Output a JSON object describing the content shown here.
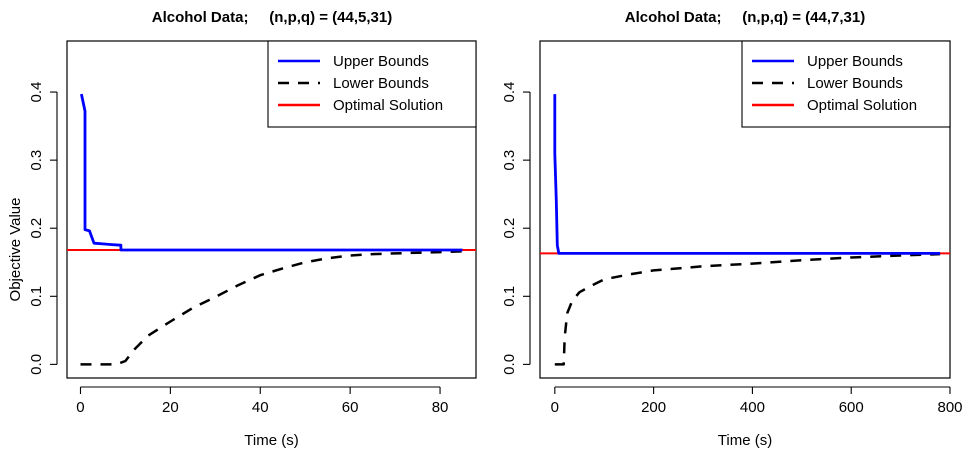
{
  "chart_data": [
    {
      "type": "line",
      "title": "Alcohol Data;     (n,p,q) = (44,5,31)",
      "xlabel": "Time (s)",
      "ylabel": "Objective Value",
      "xlim": [
        -3,
        88
      ],
      "ylim": [
        -0.02,
        0.475
      ],
      "xticks": [
        0,
        20,
        40,
        60,
        80
      ],
      "yticks": [
        0.0,
        0.1,
        0.2,
        0.3,
        0.4
      ],
      "legend_position": "top-right",
      "grid": false,
      "series": [
        {
          "name": "Upper Bounds",
          "color": "#0000ff",
          "style": "solid",
          "points": [
            [
              0.2,
              0.397
            ],
            [
              1.0,
              0.372
            ],
            [
              1.0,
              0.198
            ],
            [
              2.0,
              0.196
            ],
            [
              3.0,
              0.178
            ],
            [
              5.0,
              0.177
            ],
            [
              7.0,
              0.176
            ],
            [
              9.0,
              0.175
            ],
            [
              9.0,
              0.168
            ],
            [
              85,
              0.168
            ]
          ]
        },
        {
          "name": "Lower Bounds",
          "color": "#000000",
          "style": "dashed",
          "points": [
            [
              0,
              0.0
            ],
            [
              8,
              0.0
            ],
            [
              10,
              0.005
            ],
            [
              12,
              0.022
            ],
            [
              15,
              0.042
            ],
            [
              20,
              0.063
            ],
            [
              25,
              0.083
            ],
            [
              30,
              0.099
            ],
            [
              35,
              0.116
            ],
            [
              40,
              0.131
            ],
            [
              45,
              0.141
            ],
            [
              50,
              0.15
            ],
            [
              55,
              0.156
            ],
            [
              60,
              0.16
            ],
            [
              65,
              0.162
            ],
            [
              70,
              0.163
            ],
            [
              75,
              0.164
            ],
            [
              80,
              0.165
            ],
            [
              85,
              0.166
            ]
          ]
        },
        {
          "name": "Optimal Solution",
          "color": "#ff0000",
          "style": "hline",
          "y": 0.168
        }
      ]
    },
    {
      "type": "line",
      "title": "Alcohol Data;     (n,p,q) = (44,7,31)",
      "xlabel": "Time (s)",
      "ylabel": "",
      "xlim": [
        -30,
        800
      ],
      "ylim": [
        -0.02,
        0.475
      ],
      "xticks": [
        0,
        200,
        400,
        600,
        800
      ],
      "yticks": [
        0.0,
        0.1,
        0.2,
        0.3,
        0.4
      ],
      "legend_position": "top-right",
      "grid": false,
      "series": [
        {
          "name": "Upper Bounds",
          "color": "#0000ff",
          "style": "solid",
          "points": [
            [
              0,
              0.397
            ],
            [
              0,
              0.31
            ],
            [
              3,
              0.24
            ],
            [
              5,
              0.175
            ],
            [
              8,
              0.163
            ],
            [
              780,
              0.163
            ]
          ]
        },
        {
          "name": "Lower Bounds",
          "color": "#000000",
          "style": "dashed",
          "points": [
            [
              0,
              0.0
            ],
            [
              18,
              0.0
            ],
            [
              20,
              0.04
            ],
            [
              25,
              0.075
            ],
            [
              35,
              0.093
            ],
            [
              50,
              0.106
            ],
            [
              75,
              0.116
            ],
            [
              100,
              0.125
            ],
            [
              150,
              0.132
            ],
            [
              200,
              0.138
            ],
            [
              300,
              0.144
            ],
            [
              400,
              0.148
            ],
            [
              500,
              0.153
            ],
            [
              600,
              0.157
            ],
            [
              700,
              0.16
            ],
            [
              780,
              0.162
            ]
          ]
        },
        {
          "name": "Optimal Solution",
          "color": "#ff0000",
          "style": "hline",
          "y": 0.163
        }
      ]
    }
  ]
}
